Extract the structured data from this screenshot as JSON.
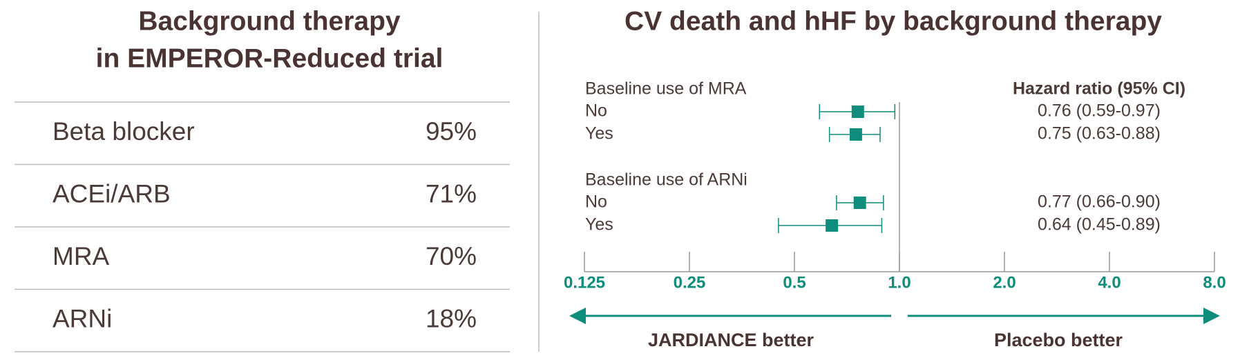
{
  "table": {
    "title": [
      "Background therapy",
      "in EMPEROR-Reduced trial"
    ],
    "rows": [
      [
        "Beta blocker",
        "95%"
      ],
      [
        "ACEi/ARB",
        "71%"
      ],
      [
        "MRA",
        "70%"
      ],
      [
        "ARNi",
        "18%"
      ]
    ]
  },
  "chart_data": {
    "type": "forest",
    "title": "CV death and hHF by background therapy",
    "value_header": "Hazard ratio (95% CI)",
    "groups": [
      {
        "name": "Baseline use of MRA",
        "categories": [
          "No",
          "Yes"
        ],
        "values": [
          0.76,
          0.75
        ],
        "lower": [
          0.59,
          0.63
        ],
        "upper": [
          0.97,
          0.88
        ],
        "value_labels": [
          "0.76 (0.59-0.97)",
          "0.75 (0.63-0.88)"
        ]
      },
      {
        "name": "Baseline use of ARNi",
        "categories": [
          "No",
          "Yes"
        ],
        "values": [
          0.77,
          0.64
        ],
        "lower": [
          0.66,
          0.45
        ],
        "upper": [
          0.9,
          0.89
        ],
        "value_labels": [
          "0.77 (0.66-0.90)",
          "0.64 (0.45-0.89)"
        ]
      }
    ],
    "xlim": [
      0.125,
      8
    ],
    "log_scale": true,
    "xticks": [
      0.125,
      0.25,
      0.5,
      {
        "value": 1,
        "label": "1.0"
      },
      {
        "value": 2,
        "label": "2.0"
      },
      {
        "value": 4,
        "label": "4.0"
      },
      {
        "value": 8,
        "label": "8.0"
      }
    ],
    "reference": 1,
    "arrow_labels": [
      "JARDIANCE better",
      "Placebo better"
    ],
    "color": "#0e8c7c"
  }
}
